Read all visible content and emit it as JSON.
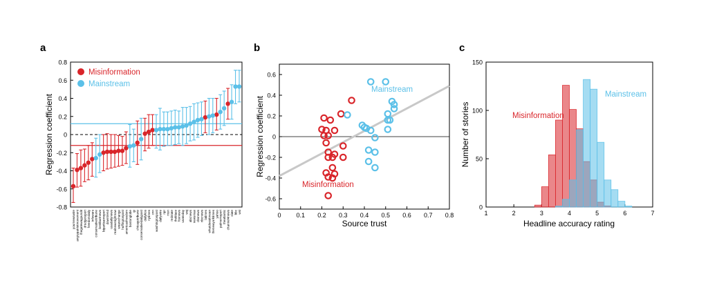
{
  "colors": {
    "misinformation": "#d9252a",
    "mainstream": "#5bc0e8",
    "trend": "#c8c8c8",
    "axis": "#000000"
  },
  "panels": {
    "a": "a",
    "b": "b",
    "c": "c"
  },
  "chart_data": [
    {
      "type": "scatter",
      "panel": "a",
      "title": "",
      "ylabel": "Regression coefficient",
      "ylim": [
        -0.8,
        0.8
      ],
      "yticks": [
        "0.8",
        "0.6",
        "0.4",
        "0.2",
        "0",
        "-0.2",
        "-0.4",
        "-0.6",
        "-0.8"
      ],
      "legend": [
        "Misinformation",
        "Mainstream"
      ],
      "legend_position": "top-left",
      "mean_lines": {
        "Mainstream": 0.12,
        "Misinformation": -0.12,
        "zero_dashed": 0
      },
      "categories": [
        "yournewswire",
        "angrypatriotmovement",
        "thegatewaypundit",
        "drudgereport",
        "freedomdaily",
        "infowars",
        "conservativetribune",
        "breitbartnews",
        "bipartisanreport",
        "downtrend",
        "usadailynews",
        "realnewsrightnow",
        "wearechange",
        "huffingtonpost",
        "americasfreedom",
        "bostonglobe",
        "ijr",
        "chicagotribune",
        "conservativedailypost",
        "dailykos",
        "nytimes",
        "cnn",
        "washingtonpost",
        "dailywire",
        "npr",
        "msn",
        "redstate",
        "theblaze",
        "foxnews",
        "usatoday",
        "wsj",
        "abcnews",
        "newsmax",
        "cbsnews",
        "nbcnews",
        "latimes",
        "whatdoesitmean",
        "thenewyorktimes",
        "yahoo",
        "palmerreport",
        "theatlantic",
        "channel4news",
        "slate",
        "bbc",
        "wsi"
      ],
      "series": [
        {
          "name": "Misinformation",
          "points": [
            {
              "i": 0,
              "y": -0.57,
              "lo": -0.75,
              "hi": -0.37
            },
            {
              "i": 1,
              "y": -0.39,
              "lo": -0.58,
              "hi": -0.21
            },
            {
              "i": 2,
              "y": -0.37,
              "lo": -0.57,
              "hi": -0.17
            },
            {
              "i": 3,
              "y": -0.34,
              "lo": -0.52,
              "hi": -0.16
            },
            {
              "i": 4,
              "y": -0.31,
              "lo": -0.5,
              "hi": -0.12
            },
            {
              "i": 5,
              "y": -0.27,
              "lo": -0.46,
              "hi": -0.09
            },
            {
              "i": 8,
              "y": -0.2,
              "lo": -0.4,
              "hi": 0.0
            },
            {
              "i": 9,
              "y": -0.19,
              "lo": -0.38,
              "hi": 0.01
            },
            {
              "i": 10,
              "y": -0.19,
              "lo": -0.37,
              "hi": 0.0
            },
            {
              "i": 11,
              "y": -0.19,
              "lo": -0.36,
              "hi": 0.0
            },
            {
              "i": 12,
              "y": -0.18,
              "lo": -0.35,
              "hi": -0.01
            },
            {
              "i": 13,
              "y": -0.18,
              "lo": -0.34,
              "hi": -0.02
            },
            {
              "i": 14,
              "y": -0.15,
              "lo": -0.32,
              "hi": 0.03
            },
            {
              "i": 17,
              "y": -0.09,
              "lo": -0.33,
              "hi": 0.15
            },
            {
              "i": 19,
              "y": 0.01,
              "lo": -0.18,
              "hi": 0.18
            },
            {
              "i": 20,
              "y": 0.03,
              "lo": -0.15,
              "hi": 0.22
            },
            {
              "i": 21,
              "y": 0.05,
              "lo": -0.12,
              "hi": 0.22
            },
            {
              "i": 35,
              "y": 0.19,
              "lo": 0.02,
              "hi": 0.37
            },
            {
              "i": 38,
              "y": 0.22,
              "lo": 0.05,
              "hi": 0.4
            },
            {
              "i": 41,
              "y": 0.34,
              "lo": 0.17,
              "hi": 0.51
            }
          ]
        },
        {
          "name": "Mainstream",
          "points": [
            {
              "i": 6,
              "y": -0.26,
              "lo": -0.47,
              "hi": -0.04
            },
            {
              "i": 7,
              "y": -0.22,
              "lo": -0.42,
              "hi": 0.0
            },
            {
              "i": 15,
              "y": -0.13,
              "lo": -0.36,
              "hi": 0.11
            },
            {
              "i": 16,
              "y": -0.12,
              "lo": -0.3,
              "hi": 0.06
            },
            {
              "i": 18,
              "y": -0.05,
              "lo": -0.28,
              "hi": 0.18
            },
            {
              "i": 22,
              "y": 0.05,
              "lo": -0.15,
              "hi": 0.22
            },
            {
              "i": 23,
              "y": 0.06,
              "lo": -0.17,
              "hi": 0.29
            },
            {
              "i": 24,
              "y": 0.06,
              "lo": -0.13,
              "hi": 0.25
            },
            {
              "i": 25,
              "y": 0.06,
              "lo": -0.12,
              "hi": 0.25
            },
            {
              "i": 26,
              "y": 0.07,
              "lo": -0.12,
              "hi": 0.26
            },
            {
              "i": 27,
              "y": 0.08,
              "lo": -0.11,
              "hi": 0.27
            },
            {
              "i": 28,
              "y": 0.08,
              "lo": -0.1,
              "hi": 0.26
            },
            {
              "i": 29,
              "y": 0.09,
              "lo": -0.12,
              "hi": 0.3
            },
            {
              "i": 30,
              "y": 0.1,
              "lo": -0.1,
              "hi": 0.3
            },
            {
              "i": 31,
              "y": 0.12,
              "lo": -0.07,
              "hi": 0.31
            },
            {
              "i": 32,
              "y": 0.14,
              "lo": -0.06,
              "hi": 0.34
            },
            {
              "i": 33,
              "y": 0.16,
              "lo": -0.03,
              "hi": 0.35
            },
            {
              "i": 34,
              "y": 0.17,
              "lo": -0.01,
              "hi": 0.36
            },
            {
              "i": 36,
              "y": 0.2,
              "lo": 0.0,
              "hi": 0.4
            },
            {
              "i": 37,
              "y": 0.21,
              "lo": 0.02,
              "hi": 0.4
            },
            {
              "i": 39,
              "y": 0.25,
              "lo": 0.06,
              "hi": 0.44
            },
            {
              "i": 40,
              "y": 0.29,
              "lo": 0.1,
              "hi": 0.48
            },
            {
              "i": 42,
              "y": 0.36,
              "lo": 0.17,
              "hi": 0.55
            },
            {
              "i": 43,
              "y": 0.53,
              "lo": 0.34,
              "hi": 0.71
            },
            {
              "i": 44,
              "y": 0.53,
              "lo": 0.36,
              "hi": 0.71
            }
          ]
        }
      ]
    },
    {
      "type": "scatter",
      "panel": "b",
      "title": "",
      "xlabel": "Source trust",
      "ylabel": "Regression coefficient",
      "xlim": [
        0,
        0.8
      ],
      "ylim": [
        -0.7,
        0.7
      ],
      "xticks": [
        "0",
        "0.1",
        "0.2",
        "0.3",
        "0.4",
        "0.5",
        "0.6",
        "0.7",
        "0.8"
      ],
      "yticks": [
        "0.6",
        "0.4",
        "0.2",
        "0",
        "-0.2",
        "-0.4",
        "-0.6"
      ],
      "grid": false,
      "trend_line": {
        "x": [
          0,
          0.8
        ],
        "y": [
          -0.38,
          0.49
        ]
      },
      "series": [
        {
          "name": "Misinformation",
          "label_text": "Misinformation",
          "points": [
            [
              0.21,
              0.18
            ],
            [
              0.24,
              0.16
            ],
            [
              0.29,
              0.22
            ],
            [
              0.34,
              0.35
            ],
            [
              0.2,
              0.07
            ],
            [
              0.22,
              0.06
            ],
            [
              0.26,
              0.06
            ],
            [
              0.21,
              0.01
            ],
            [
              0.23,
              0.01
            ],
            [
              0.22,
              -0.06
            ],
            [
              0.3,
              -0.09
            ],
            [
              0.23,
              -0.15
            ],
            [
              0.26,
              -0.17
            ],
            [
              0.23,
              -0.2
            ],
            [
              0.25,
              -0.2
            ],
            [
              0.3,
              -0.2
            ],
            [
              0.25,
              -0.3
            ],
            [
              0.22,
              -0.35
            ],
            [
              0.26,
              -0.36
            ],
            [
              0.23,
              -0.39
            ],
            [
              0.25,
              -0.4
            ],
            [
              0.23,
              -0.57
            ]
          ]
        },
        {
          "name": "Mainstream",
          "label_text": "Mainstream",
          "points": [
            [
              0.43,
              0.53
            ],
            [
              0.5,
              0.53
            ],
            [
              0.53,
              0.34
            ],
            [
              0.54,
              0.31
            ],
            [
              0.54,
              0.27
            ],
            [
              0.51,
              0.22
            ],
            [
              0.32,
              0.21
            ],
            [
              0.51,
              0.16
            ],
            [
              0.52,
              0.16
            ],
            [
              0.39,
              0.11
            ],
            [
              0.4,
              0.09
            ],
            [
              0.41,
              0.08
            ],
            [
              0.43,
              0.06
            ],
            [
              0.51,
              0.07
            ],
            [
              0.45,
              -0.01
            ],
            [
              0.42,
              -0.13
            ],
            [
              0.45,
              -0.15
            ],
            [
              0.42,
              -0.24
            ],
            [
              0.45,
              -0.3
            ]
          ]
        }
      ]
    },
    {
      "type": "bar",
      "panel": "c",
      "title": "",
      "xlabel": "Headline accuracy rating",
      "ylabel": "Number of stories",
      "xlim": [
        1,
        7
      ],
      "ylim": [
        0,
        150
      ],
      "xticks": [
        "1",
        "2",
        "3",
        "4",
        "5",
        "6",
        "7"
      ],
      "yticks": [
        "150",
        "100",
        "50",
        "0"
      ],
      "bin_width": 0.25,
      "series": [
        {
          "name": "Misinformation",
          "label_text": "Misinformation",
          "bin_starts": [
            2.75,
            3.0,
            3.25,
            3.5,
            3.75,
            4.0,
            4.25,
            4.5,
            4.75,
            5.0,
            5.25,
            5.5
          ],
          "counts": [
            2,
            21,
            54,
            90,
            126,
            101,
            81,
            47,
            28,
            5,
            1,
            0
          ]
        },
        {
          "name": "Mainstream",
          "label_text": "Mainstream",
          "bin_starts": [
            3.5,
            3.75,
            4.0,
            4.25,
            4.5,
            4.75,
            5.0,
            5.25,
            5.5,
            5.75,
            6.0
          ],
          "counts": [
            1,
            8,
            28,
            80,
            132,
            122,
            67,
            28,
            18,
            6,
            1
          ]
        }
      ]
    }
  ]
}
